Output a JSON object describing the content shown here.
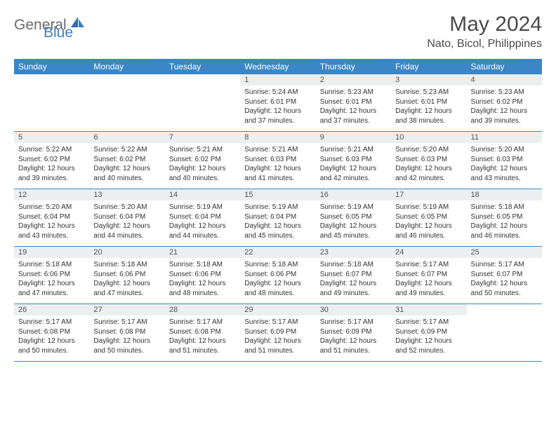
{
  "logo": {
    "text1": "General",
    "text2": "Blue"
  },
  "title": "May 2024",
  "location": "Nato, Bicol, Philippines",
  "colors": {
    "header_bg": "#3b86c7",
    "header_text": "#ffffff",
    "daynum_bg": "#eceeef"
  },
  "day_headers": [
    "Sunday",
    "Monday",
    "Tuesday",
    "Wednesday",
    "Thursday",
    "Friday",
    "Saturday"
  ],
  "weeks": [
    [
      {
        "blank": true
      },
      {
        "blank": true
      },
      {
        "blank": true
      },
      {
        "num": "1",
        "sunrise": "5:24 AM",
        "sunset": "6:01 PM",
        "daylight": "12 hours and 37 minutes."
      },
      {
        "num": "2",
        "sunrise": "5:23 AM",
        "sunset": "6:01 PM",
        "daylight": "12 hours and 37 minutes."
      },
      {
        "num": "3",
        "sunrise": "5:23 AM",
        "sunset": "6:01 PM",
        "daylight": "12 hours and 38 minutes."
      },
      {
        "num": "4",
        "sunrise": "5:23 AM",
        "sunset": "6:02 PM",
        "daylight": "12 hours and 39 minutes."
      }
    ],
    [
      {
        "num": "5",
        "sunrise": "5:22 AM",
        "sunset": "6:02 PM",
        "daylight": "12 hours and 39 minutes."
      },
      {
        "num": "6",
        "sunrise": "5:22 AM",
        "sunset": "6:02 PM",
        "daylight": "12 hours and 40 minutes."
      },
      {
        "num": "7",
        "sunrise": "5:21 AM",
        "sunset": "6:02 PM",
        "daylight": "12 hours and 40 minutes."
      },
      {
        "num": "8",
        "sunrise": "5:21 AM",
        "sunset": "6:03 PM",
        "daylight": "12 hours and 41 minutes."
      },
      {
        "num": "9",
        "sunrise": "5:21 AM",
        "sunset": "6:03 PM",
        "daylight": "12 hours and 42 minutes."
      },
      {
        "num": "10",
        "sunrise": "5:20 AM",
        "sunset": "6:03 PM",
        "daylight": "12 hours and 42 minutes."
      },
      {
        "num": "11",
        "sunrise": "5:20 AM",
        "sunset": "6:03 PM",
        "daylight": "12 hours and 43 minutes."
      }
    ],
    [
      {
        "num": "12",
        "sunrise": "5:20 AM",
        "sunset": "6:04 PM",
        "daylight": "12 hours and 43 minutes."
      },
      {
        "num": "13",
        "sunrise": "5:20 AM",
        "sunset": "6:04 PM",
        "daylight": "12 hours and 44 minutes."
      },
      {
        "num": "14",
        "sunrise": "5:19 AM",
        "sunset": "6:04 PM",
        "daylight": "12 hours and 44 minutes."
      },
      {
        "num": "15",
        "sunrise": "5:19 AM",
        "sunset": "6:04 PM",
        "daylight": "12 hours and 45 minutes."
      },
      {
        "num": "16",
        "sunrise": "5:19 AM",
        "sunset": "6:05 PM",
        "daylight": "12 hours and 45 minutes."
      },
      {
        "num": "17",
        "sunrise": "5:19 AM",
        "sunset": "6:05 PM",
        "daylight": "12 hours and 46 minutes."
      },
      {
        "num": "18",
        "sunrise": "5:18 AM",
        "sunset": "6:05 PM",
        "daylight": "12 hours and 46 minutes."
      }
    ],
    [
      {
        "num": "19",
        "sunrise": "5:18 AM",
        "sunset": "6:06 PM",
        "daylight": "12 hours and 47 minutes."
      },
      {
        "num": "20",
        "sunrise": "5:18 AM",
        "sunset": "6:06 PM",
        "daylight": "12 hours and 47 minutes."
      },
      {
        "num": "21",
        "sunrise": "5:18 AM",
        "sunset": "6:06 PM",
        "daylight": "12 hours and 48 minutes."
      },
      {
        "num": "22",
        "sunrise": "5:18 AM",
        "sunset": "6:06 PM",
        "daylight": "12 hours and 48 minutes."
      },
      {
        "num": "23",
        "sunrise": "5:18 AM",
        "sunset": "6:07 PM",
        "daylight": "12 hours and 49 minutes."
      },
      {
        "num": "24",
        "sunrise": "5:17 AM",
        "sunset": "6:07 PM",
        "daylight": "12 hours and 49 minutes."
      },
      {
        "num": "25",
        "sunrise": "5:17 AM",
        "sunset": "6:07 PM",
        "daylight": "12 hours and 50 minutes."
      }
    ],
    [
      {
        "num": "26",
        "sunrise": "5:17 AM",
        "sunset": "6:08 PM",
        "daylight": "12 hours and 50 minutes."
      },
      {
        "num": "27",
        "sunrise": "5:17 AM",
        "sunset": "6:08 PM",
        "daylight": "12 hours and 50 minutes."
      },
      {
        "num": "28",
        "sunrise": "5:17 AM",
        "sunset": "6:08 PM",
        "daylight": "12 hours and 51 minutes."
      },
      {
        "num": "29",
        "sunrise": "5:17 AM",
        "sunset": "6:09 PM",
        "daylight": "12 hours and 51 minutes."
      },
      {
        "num": "30",
        "sunrise": "5:17 AM",
        "sunset": "6:09 PM",
        "daylight": "12 hours and 51 minutes."
      },
      {
        "num": "31",
        "sunrise": "5:17 AM",
        "sunset": "6:09 PM",
        "daylight": "12 hours and 52 minutes."
      },
      {
        "blank": true
      }
    ]
  ],
  "labels": {
    "sunrise": "Sunrise:",
    "sunset": "Sunset:",
    "daylight": "Daylight:"
  }
}
